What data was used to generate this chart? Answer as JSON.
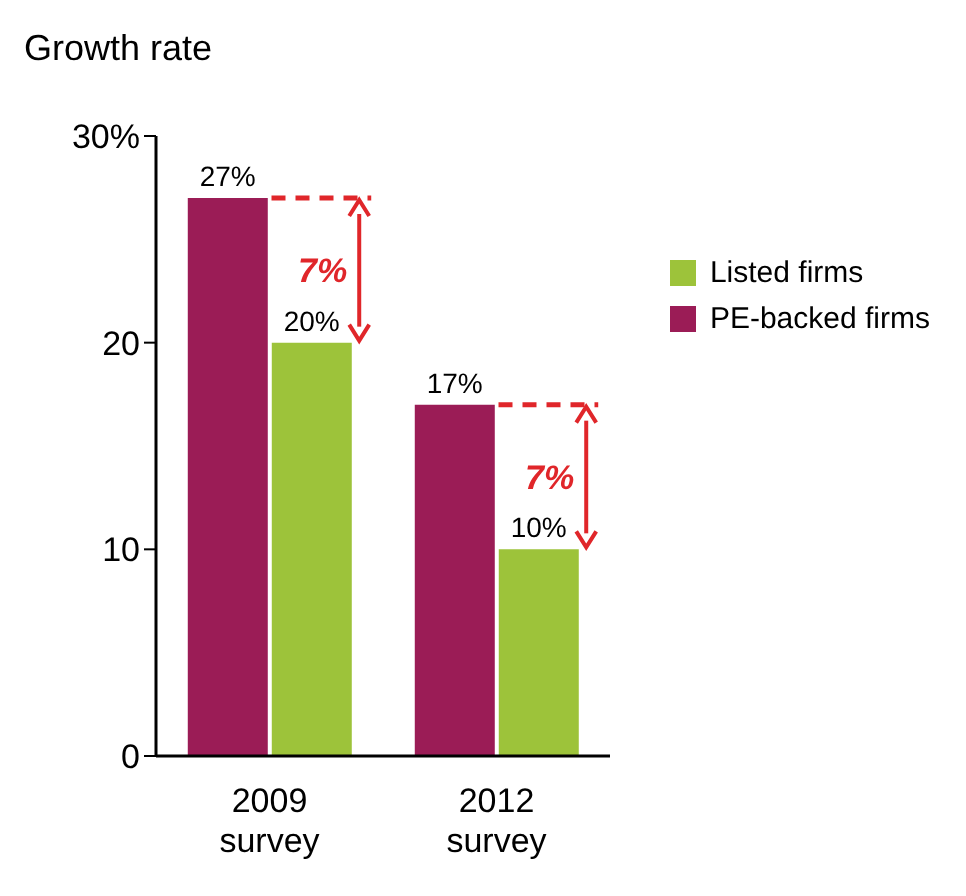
{
  "chart_data": {
    "type": "bar",
    "ylabel": "Growth rate",
    "categories": [
      "2009 survey",
      "2012 survey"
    ],
    "series": [
      {
        "name": "PE-backed firms",
        "color": "#9b1c56",
        "values": [
          27,
          17
        ],
        "value_labels": [
          "27%",
          "17%"
        ]
      },
      {
        "name": "Listed firms",
        "color": "#9dc33a",
        "values": [
          20,
          10
        ],
        "value_labels": [
          "20%",
          "10%"
        ]
      }
    ],
    "ylim": [
      0,
      30
    ],
    "yticks": [
      0,
      10,
      20,
      {
        "value": 30,
        "label": "30%"
      }
    ],
    "grid": false,
    "legend": "right",
    "annotations": [
      {
        "text": "7%",
        "x": "2009 survey",
        "y": 23.5
      },
      {
        "text": "7%",
        "x": "2012 survey",
        "y": 13.5
      }
    ]
  }
}
